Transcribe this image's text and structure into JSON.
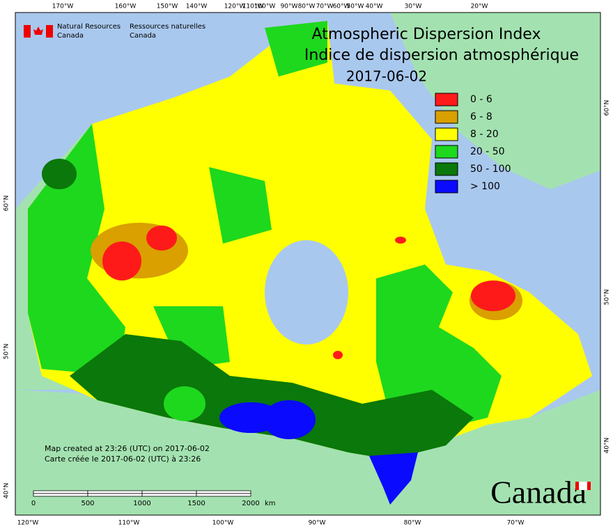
{
  "title": {
    "en": "Atmospheric Dispersion Index",
    "fr": "Indice de dispersion atmosphérique",
    "date": "2017-06-02"
  },
  "agency": {
    "en": [
      "Natural Resources",
      "Canada"
    ],
    "fr": [
      "Ressources naturelles",
      "Canada"
    ]
  },
  "legend": [
    {
      "label": "0 - 6",
      "color": "#ff1a1a"
    },
    {
      "label": "6 - 8",
      "color": "#d9a000"
    },
    {
      "label": "8 - 20",
      "color": "#ffff00"
    },
    {
      "label": "20 - 50",
      "color": "#1ed81e"
    },
    {
      "label": "50 - 100",
      "color": "#0a780a"
    },
    {
      "label": "> 100",
      "color": "#0a0aff"
    }
  ],
  "top_labels": [
    "170°W",
    "160°W",
    "150°W",
    "140°W",
    "120°W",
    "110°W",
    "100°W",
    "90°W",
    "80°W",
    "70°W",
    "60°W",
    "50°W",
    "40°W",
    "30°W",
    "20°W"
  ],
  "bottom_labels": [
    "120°W",
    "110°W",
    "100°W",
    "90°W",
    "80°W",
    "70°W"
  ],
  "left_labels": [
    "60°N",
    "50°N",
    "40°N"
  ],
  "right_labels": [
    "60°N",
    "50°N",
    "40°N"
  ],
  "notes": [
    "Map created at 23:26 (UTC) on 2017-06-02",
    "Carte créée le 2017-06-02 (UTC) à 23:26"
  ],
  "scale_bar": {
    "ticks": [
      "0",
      "500",
      "1000",
      "1500",
      "2000"
    ],
    "unit": "km"
  },
  "wordmark": "Canada"
}
